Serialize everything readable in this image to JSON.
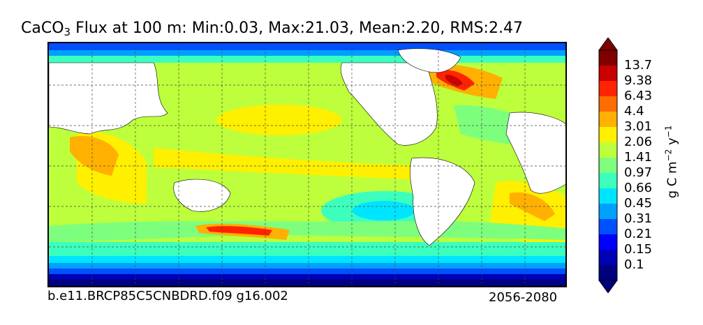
{
  "title": {
    "prefix": "CaCO",
    "subscript": "3",
    "text": " Flux at 100 m: Min:0.03, Max:21.03, Mean:2.20, RMS:2.47"
  },
  "footer": {
    "run_id": "b.e11.BRCP85C5CNBDRD.f09 g16.002",
    "period": "2056-2080"
  },
  "colorbar": {
    "unit_parts": [
      "g C m",
      "−2",
      " y",
      "−1"
    ],
    "levels": [
      "0.1",
      "0.15",
      "0.21",
      "0.31",
      "0.45",
      "0.66",
      "0.97",
      "1.41",
      "2.06",
      "3.01",
      "4.4",
      "6.43",
      "9.38",
      "13.7"
    ],
    "colors": [
      "#000080",
      "#0000b4",
      "#0000ff",
      "#0050ff",
      "#00a0ff",
      "#00e5ff",
      "#3cffbe",
      "#7dff7d",
      "#bdff3c",
      "#ffef00",
      "#ffb000",
      "#ff6c00",
      "#ff2400",
      "#c80000",
      "#800000"
    ]
  },
  "map": {
    "background": "#ffffff",
    "land_color": "#ffffff",
    "gridlines": "dashed"
  }
}
